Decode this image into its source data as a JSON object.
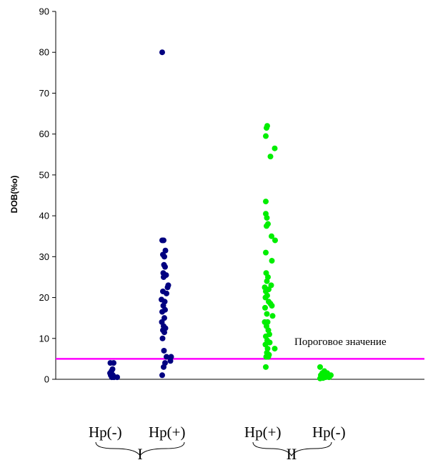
{
  "chart_data": {
    "type": "scatter",
    "ylabel": "DOB(%o)",
    "ylim": [
      0,
      90
    ],
    "yticks": [
      0,
      10,
      20,
      30,
      40,
      50,
      60,
      70,
      80,
      90
    ],
    "grid": false,
    "threshold": {
      "value": 5,
      "label": "Пороговое значение",
      "color": "#ff00ff"
    },
    "group_labels": [
      "Hp(-)",
      "Hp(+)",
      "Hp(+)",
      "Hp(-)"
    ],
    "group_names": [
      "I",
      "II"
    ],
    "series": [
      {
        "group": "I",
        "category": "Hp(-)",
        "color": "#000080",
        "points": [
          [
            0.5,
            4
          ],
          [
            1.4,
            4
          ],
          [
            1.1,
            2.5
          ],
          [
            0.8,
            2
          ],
          [
            0.4,
            1.5
          ],
          [
            0.6,
            1
          ],
          [
            1.2,
            1
          ],
          [
            0.9,
            0.5
          ],
          [
            1.5,
            0.5
          ],
          [
            2.4,
            0.5
          ]
        ]
      },
      {
        "group": "I",
        "category": "Hp(+)",
        "color": "#000080",
        "points": [
          [
            0,
            80
          ],
          [
            0,
            34
          ],
          [
            0.4,
            34
          ],
          [
            0.9,
            31.5
          ],
          [
            0.2,
            30.5
          ],
          [
            0.6,
            30
          ],
          [
            0.5,
            28
          ],
          [
            0.8,
            27.5
          ],
          [
            0.3,
            26
          ],
          [
            1.1,
            25.5
          ],
          [
            0.4,
            25
          ],
          [
            1.7,
            23
          ],
          [
            1.5,
            22.5
          ],
          [
            0.2,
            21.5
          ],
          [
            1.2,
            21
          ],
          [
            0.7,
            19
          ],
          [
            -0.2,
            19.5
          ],
          [
            0.3,
            18
          ],
          [
            0.8,
            17
          ],
          [
            0,
            16.5
          ],
          [
            0.6,
            15
          ],
          [
            -0.1,
            14
          ],
          [
            0.4,
            13
          ],
          [
            0.9,
            12.5
          ],
          [
            0.2,
            12
          ],
          [
            0.6,
            11.5
          ],
          [
            0.1,
            10
          ],
          [
            0.5,
            7
          ],
          [
            1.2,
            5.5
          ],
          [
            2.5,
            5.5
          ],
          [
            2.3,
            4.5
          ],
          [
            0.8,
            4
          ],
          [
            0.4,
            3
          ],
          [
            0,
            1
          ]
        ]
      },
      {
        "group": "II",
        "category": "Hp(+)",
        "color": "#00ee00",
        "points": [
          [
            0.4,
            62
          ],
          [
            0.2,
            61.5
          ],
          [
            0,
            59.5
          ],
          [
            2.5,
            56.5
          ],
          [
            1.3,
            54.5
          ],
          [
            0,
            43.5
          ],
          [
            0,
            40.5
          ],
          [
            0.3,
            39.5
          ],
          [
            0.6,
            38
          ],
          [
            0.2,
            37.5
          ],
          [
            1.6,
            35
          ],
          [
            2.6,
            34
          ],
          [
            0,
            31
          ],
          [
            1.7,
            29
          ],
          [
            0.1,
            26
          ],
          [
            0.6,
            25
          ],
          [
            0.3,
            24
          ],
          [
            -0.3,
            22.5
          ],
          [
            0.8,
            22
          ],
          [
            1.5,
            23
          ],
          [
            0,
            21.5
          ],
          [
            -0.1,
            20
          ],
          [
            0.4,
            20.5
          ],
          [
            0.8,
            19
          ],
          [
            1.3,
            18.5
          ],
          [
            1.7,
            18
          ],
          [
            -0.2,
            17.5
          ],
          [
            0.3,
            16
          ],
          [
            1.9,
            15.5
          ],
          [
            -0.3,
            14
          ],
          [
            0.5,
            14
          ],
          [
            0.2,
            13
          ],
          [
            0.7,
            12
          ],
          [
            1,
            11
          ],
          [
            0,
            10.5
          ],
          [
            0.4,
            9.5
          ],
          [
            1.1,
            9
          ],
          [
            -0.1,
            8.5
          ],
          [
            0.5,
            7.5
          ],
          [
            2.5,
            7.5
          ],
          [
            0.3,
            6.5
          ],
          [
            0.9,
            6
          ],
          [
            0.1,
            5.5
          ],
          [
            0.7,
            5.5
          ],
          [
            0,
            3
          ]
        ]
      },
      {
        "group": "II",
        "category": "Hp(-)",
        "color": "#00ee00",
        "points": [
          [
            0,
            3
          ],
          [
            1.2,
            2
          ],
          [
            0.6,
            1.5
          ],
          [
            2,
            1.5
          ],
          [
            3,
            1
          ],
          [
            0.2,
            1
          ],
          [
            1.5,
            0.5
          ],
          [
            2.5,
            0.5
          ],
          [
            0.8,
            0.3
          ],
          [
            0,
            0.2
          ]
        ]
      }
    ]
  }
}
